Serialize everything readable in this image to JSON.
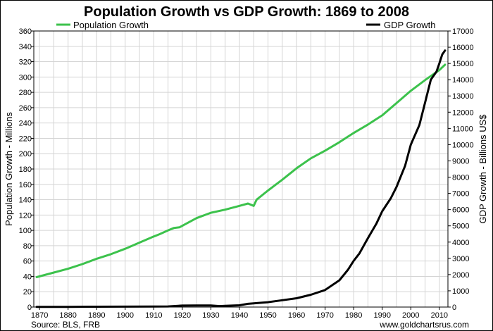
{
  "chart_data": {
    "type": "line",
    "title": "Population Growth vs GDP Growth: 1869 to 2008",
    "xlabel": "",
    "ylabel_left": "Population Growth - Millions",
    "ylabel_right": "GDP Growth - Billions US$",
    "x_range": [
      1868,
      2013
    ],
    "x_ticks": [
      1870,
      1880,
      1890,
      1900,
      1910,
      1920,
      1930,
      1940,
      1950,
      1960,
      1970,
      1980,
      1990,
      2000,
      2010
    ],
    "y_left_range": [
      0,
      360
    ],
    "y_left_ticks": [
      0,
      20,
      40,
      60,
      80,
      100,
      120,
      140,
      160,
      180,
      200,
      220,
      240,
      260,
      280,
      300,
      320,
      340,
      360
    ],
    "y_right_range": [
      0,
      17000
    ],
    "y_right_ticks": [
      0,
      1000,
      2000,
      3000,
      4000,
      5000,
      6000,
      7000,
      8000,
      9000,
      10000,
      11000,
      12000,
      13000,
      14000,
      15000,
      16000,
      17000
    ],
    "grid": true,
    "legend_placement": "top",
    "series": [
      {
        "name": "Population Growth",
        "axis": "left",
        "color": "#3cc24c",
        "x": [
          1869,
          1875,
          1880,
          1885,
          1890,
          1895,
          1900,
          1905,
          1910,
          1912,
          1915,
          1917,
          1919,
          1920,
          1925,
          1930,
          1935,
          1940,
          1943,
          1945,
          1946,
          1950,
          1955,
          1960,
          1965,
          1970,
          1975,
          1980,
          1985,
          1990,
          1995,
          2000,
          2005,
          2010,
          2012
        ],
        "values": [
          39,
          45,
          50,
          56,
          63,
          69,
          76,
          84,
          92,
          95,
          100,
          103,
          104,
          106,
          116,
          123,
          127,
          132,
          135,
          132,
          140,
          152,
          166,
          181,
          194,
          204,
          215,
          227,
          238,
          250,
          266,
          282,
          296,
          309,
          316
        ]
      },
      {
        "name": "GDP Growth",
        "axis": "right",
        "color": "#000000",
        "x": [
          1869,
          1880,
          1890,
          1900,
          1910,
          1915,
          1920,
          1925,
          1930,
          1933,
          1935,
          1940,
          1943,
          1945,
          1948,
          1950,
          1955,
          1960,
          1965,
          1970,
          1975,
          1978,
          1980,
          1982,
          1985,
          1988,
          1990,
          1993,
          1995,
          1998,
          2000,
          2003,
          2005,
          2007,
          2009,
          2010,
          2011,
          2012
        ],
        "values": [
          10,
          15,
          20,
          25,
          35,
          40,
          90,
          95,
          100,
          60,
          75,
          110,
          200,
          230,
          275,
          300,
          420,
          540,
          760,
          1050,
          1650,
          2300,
          2850,
          3300,
          4250,
          5150,
          5900,
          6700,
          7400,
          8700,
          10000,
          11200,
          12600,
          14000,
          14500,
          15000,
          15550,
          15800
        ]
      }
    ],
    "source": "Source: BLS, FRB",
    "credit": "www.goldchartsrus.com"
  }
}
